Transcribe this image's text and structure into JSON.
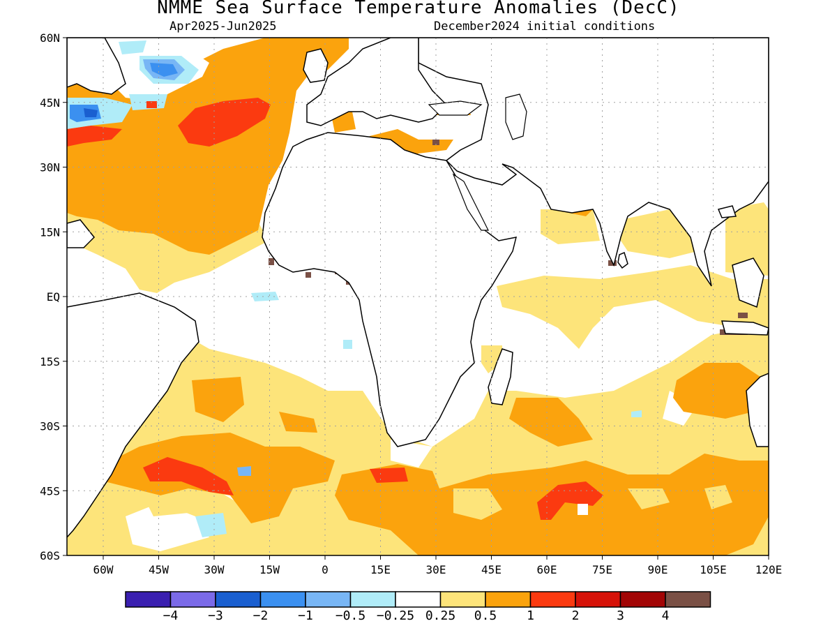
{
  "title": "NMME Sea Surface Temperature Anomalies (DecC)",
  "subtitle_left": "Apr2025-Jun2025",
  "subtitle_right": "December2024 initial conditions",
  "x_ticks": [
    "60W",
    "45W",
    "30W",
    "15W",
    "0",
    "15E",
    "30E",
    "45E",
    "60E",
    "75E",
    "90E",
    "105E",
    "120E"
  ],
  "y_ticks": [
    "60N",
    "45N",
    "30N",
    "15N",
    "EQ",
    "15S",
    "30S",
    "45S",
    "60S"
  ],
  "colorbar": {
    "colors": [
      "#3a1fb0",
      "#7b6ae8",
      "#1a5fd0",
      "#3b90f0",
      "#78b6f5",
      "#b0ecf8",
      "#ffffff",
      "#fde47a",
      "#fba30d",
      "#fb3a10",
      "#d61208",
      "#a20505",
      "#7a5045"
    ],
    "labels": [
      "−4",
      "−3",
      "−2",
      "−1",
      "−0.5",
      "−0.25",
      "0.25",
      "0.5",
      "1",
      "2",
      "3",
      "4"
    ]
  },
  "colors": {
    "ocean_neutral": "#ffffff",
    "land_outline": "#000000",
    "grid": "#a0a0a0"
  }
}
